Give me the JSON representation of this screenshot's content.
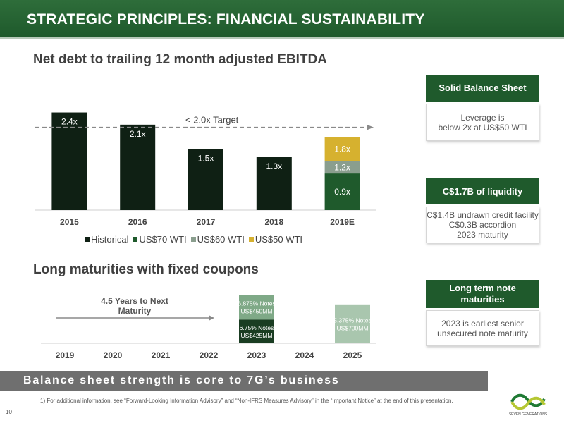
{
  "header": {
    "title": "STRATEGIC PRINCIPLES: FINANCIAL SUSTAINABILITY"
  },
  "sections": {
    "leverage_title": "Net debt to trailing 12 month adjusted EBITDA",
    "maturities_title": "Long maturities with fixed coupons"
  },
  "chart_data": [
    {
      "type": "bar",
      "categories": [
        "2015",
        "2016",
        "2017",
        "2018",
        "2019E"
      ],
      "series": [
        {
          "name": "Historical",
          "values": [
            2.4,
            2.1,
            1.5,
            1.3,
            null
          ],
          "labels": [
            "2.4x",
            "2.1x",
            "1.5x",
            "1.3x",
            ""
          ],
          "color": "#0f2014"
        },
        {
          "name": "US$70 WTI",
          "values": [
            null,
            null,
            null,
            null,
            0.9
          ],
          "labels": [
            "",
            "",
            "",
            "",
            "0.9x"
          ],
          "color": "#1f5a2c"
        },
        {
          "name": "US$60 WTI",
          "values": [
            null,
            null,
            null,
            null,
            1.2
          ],
          "labels": [
            "",
            "",
            "",
            "",
            "1.2x"
          ],
          "color": "#8a9e8e"
        },
        {
          "name": "US$50 WTI",
          "values": [
            null,
            null,
            null,
            null,
            1.8
          ],
          "labels": [
            "",
            "",
            "",
            "",
            "1.8x"
          ],
          "color": "#d6b12f"
        }
      ],
      "target": {
        "value": 2.0,
        "label": "< 2.0x Target"
      },
      "ylim": [
        0,
        2.6
      ],
      "legend": "bottom"
    },
    {
      "type": "bar",
      "categories": [
        "2019",
        "2020",
        "2021",
        "2022",
        "2023",
        "2024",
        "2025"
      ],
      "arrow_label": "4.5 Years to Next Maturity",
      "segments": [
        {
          "year": "2023",
          "bottom": 0,
          "top": 425,
          "label": "6.75% Notes US$425MM",
          "color": "#1a3d22"
        },
        {
          "year": "2023",
          "bottom": 425,
          "top": 875,
          "label": "6.875% Notes US$450MM",
          "color": "#7fa987"
        },
        {
          "year": "2025",
          "bottom": 0,
          "top": 700,
          "label": "5.375% Notes US$700MM",
          "color": "#a9c6ae"
        }
      ],
      "ylim": [
        0,
        875
      ]
    }
  ],
  "cards": [
    {
      "title": "Solid Balance Sheet",
      "lines": [
        "Leverage is",
        "below 2x at US$50 WTI"
      ]
    },
    {
      "title": "C$1.7B of liquidity",
      "lines": [
        "C$1.4B undrawn credit facility",
        "C$0.3B accordion",
        "2023 maturity"
      ]
    },
    {
      "title": "Long term note maturities",
      "lines": [
        "2023 is earliest senior",
        "unsecured note maturity"
      ]
    }
  ],
  "tagline": "Balance sheet strength is core to 7G’s business",
  "footnote": "1)   For additional information, see “Forward-Looking Information Advisory” and “Non-IFRS Measures Advisory” in the “Important Notice” at the end of this presentation.",
  "page_number": "10",
  "logo_text": "SEVEN GENERATIONS"
}
